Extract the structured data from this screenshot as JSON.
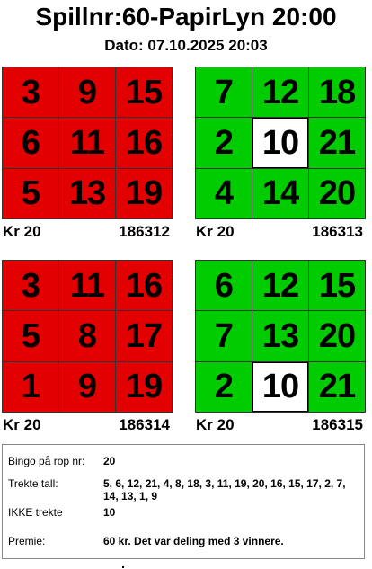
{
  "header": {
    "title": "Spillnr:60-PapirLyn 20:00",
    "date": "Dato: 07.10.2025 20:03"
  },
  "colors": {
    "red_card": "#e30000",
    "green_card": "#00cc00",
    "marked_cell": "#ffffff",
    "border": "#333333"
  },
  "cards": [
    {
      "color": "#e30000",
      "numbers": [
        3,
        9,
        15,
        6,
        11,
        16,
        5,
        13,
        19
      ],
      "marked": [],
      "price": "Kr 20",
      "id": "186312"
    },
    {
      "color": "#00cc00",
      "numbers": [
        7,
        12,
        18,
        2,
        10,
        21,
        4,
        14,
        20
      ],
      "marked": [
        4
      ],
      "price": "Kr 20",
      "id": "186313"
    },
    {
      "color": "#e30000",
      "numbers": [
        3,
        11,
        16,
        5,
        8,
        17,
        1,
        9,
        19
      ],
      "marked": [],
      "price": "Kr 20",
      "id": "186314"
    },
    {
      "color": "#00cc00",
      "numbers": [
        6,
        12,
        15,
        7,
        13,
        20,
        2,
        10,
        21
      ],
      "marked": [
        7
      ],
      "price": "Kr 20",
      "id": "186315"
    }
  ],
  "summary": {
    "bingo_label": "Bingo på rop nr:",
    "bingo_value": "20",
    "drawn_label": "Trekte tall:",
    "drawn_value": "5, 6, 12, 21, 4, 8, 18, 3, 11, 19, 20, 16, 15, 17, 2, 7, 14, 13, 1, 9",
    "not_drawn_label": "IKKE trekte",
    "not_drawn_value": "10",
    "prize_label": "Premie:",
    "prize_value": "60 kr. Det var deling med 3 vinnere."
  }
}
